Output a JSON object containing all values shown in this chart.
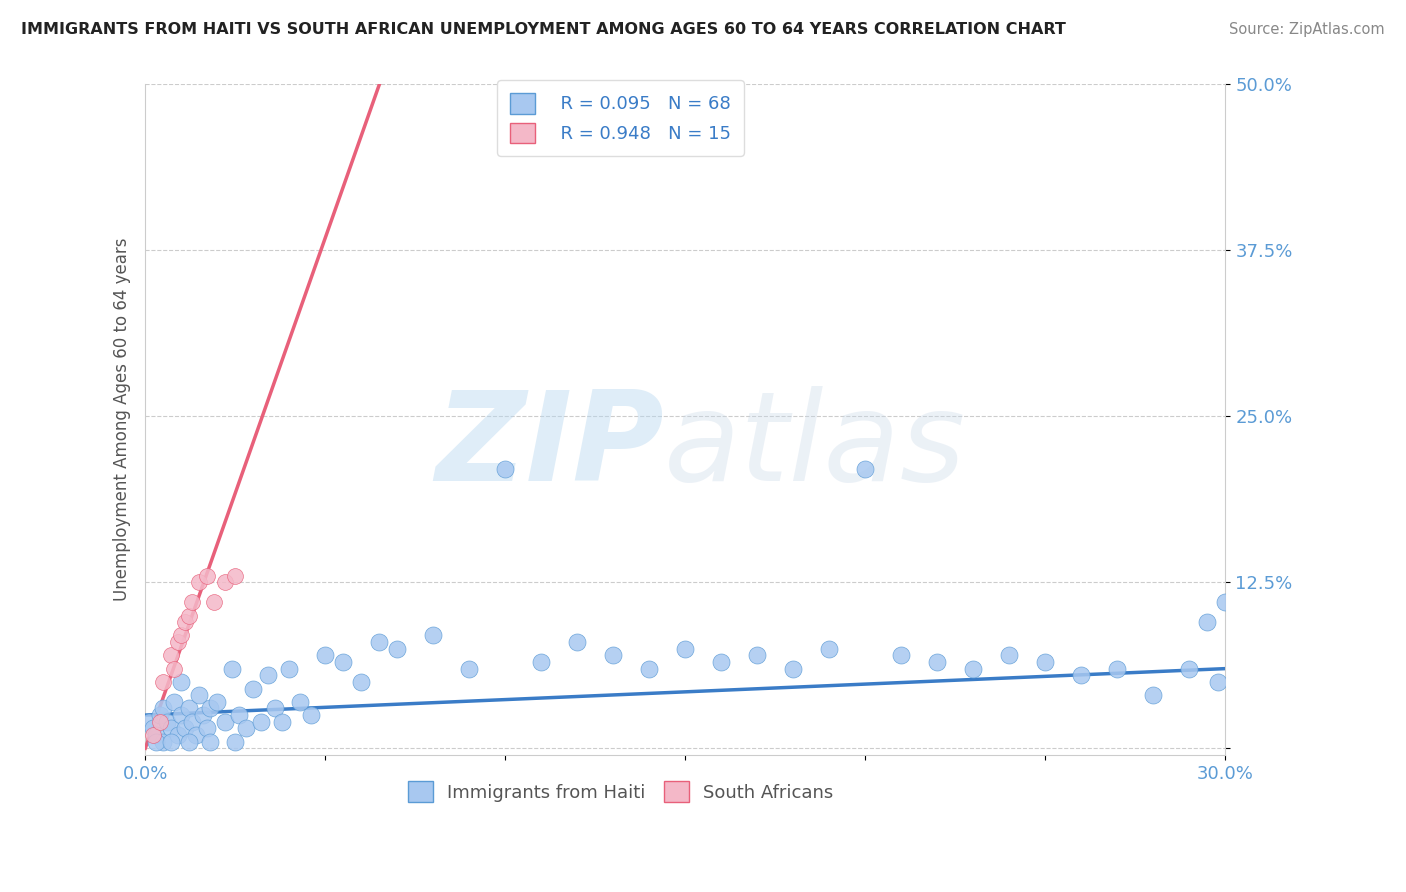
{
  "title": "IMMIGRANTS FROM HAITI VS SOUTH AFRICAN UNEMPLOYMENT AMONG AGES 60 TO 64 YEARS CORRELATION CHART",
  "source": "Source: ZipAtlas.com",
  "ylabel": "Unemployment Among Ages 60 to 64 years",
  "xlim": [
    0.0,
    0.3
  ],
  "ylim": [
    -0.005,
    0.5
  ],
  "yticks": [
    0.0,
    0.125,
    0.25,
    0.375,
    0.5
  ],
  "ytick_labels": [
    "",
    "12.5%",
    "25.0%",
    "37.5%",
    "50.0%"
  ],
  "xticks": [
    0.0,
    0.05,
    0.1,
    0.15,
    0.2,
    0.25,
    0.3
  ],
  "xtick_labels": [
    "0.0%",
    "",
    "",
    "",
    "",
    "",
    "30.0%"
  ],
  "watermark_zip": "ZIP",
  "watermark_atlas": "atlas",
  "legend_R1": "R = 0.095",
  "legend_N1": "N = 68",
  "legend_R2": "R = 0.948",
  "legend_N2": "N = 15",
  "blue_color": "#a8c8f0",
  "blue_edge_color": "#5b9bd5",
  "blue_line_color": "#3a7cc7",
  "pink_color": "#f4b8c8",
  "pink_edge_color": "#e8607a",
  "pink_line_color": "#e8607a",
  "background_color": "#ffffff",
  "grid_color": "#cccccc",
  "blue_scatter_x": [
    0.001,
    0.002,
    0.003,
    0.004,
    0.005,
    0.005,
    0.006,
    0.007,
    0.008,
    0.009,
    0.01,
    0.01,
    0.011,
    0.012,
    0.013,
    0.014,
    0.015,
    0.016,
    0.017,
    0.018,
    0.02,
    0.022,
    0.024,
    0.026,
    0.028,
    0.03,
    0.032,
    0.034,
    0.036,
    0.038,
    0.04,
    0.043,
    0.046,
    0.05,
    0.055,
    0.06,
    0.065,
    0.07,
    0.08,
    0.09,
    0.1,
    0.11,
    0.12,
    0.13,
    0.14,
    0.15,
    0.16,
    0.17,
    0.18,
    0.19,
    0.2,
    0.21,
    0.22,
    0.23,
    0.24,
    0.25,
    0.26,
    0.27,
    0.28,
    0.29,
    0.295,
    0.298,
    0.3,
    0.003,
    0.007,
    0.012,
    0.018,
    0.025
  ],
  "blue_scatter_y": [
    0.02,
    0.015,
    0.01,
    0.025,
    0.03,
    0.005,
    0.02,
    0.015,
    0.035,
    0.01,
    0.025,
    0.05,
    0.015,
    0.03,
    0.02,
    0.01,
    0.04,
    0.025,
    0.015,
    0.03,
    0.035,
    0.02,
    0.06,
    0.025,
    0.015,
    0.045,
    0.02,
    0.055,
    0.03,
    0.02,
    0.06,
    0.035,
    0.025,
    0.07,
    0.065,
    0.05,
    0.08,
    0.075,
    0.085,
    0.06,
    0.21,
    0.065,
    0.08,
    0.07,
    0.06,
    0.075,
    0.065,
    0.07,
    0.06,
    0.075,
    0.21,
    0.07,
    0.065,
    0.06,
    0.07,
    0.065,
    0.055,
    0.06,
    0.04,
    0.06,
    0.095,
    0.05,
    0.11,
    0.005,
    0.005,
    0.005,
    0.005,
    0.005
  ],
  "pink_scatter_x": [
    0.002,
    0.004,
    0.005,
    0.007,
    0.008,
    0.009,
    0.01,
    0.011,
    0.012,
    0.013,
    0.015,
    0.017,
    0.019,
    0.022,
    0.025
  ],
  "pink_scatter_y": [
    0.01,
    0.02,
    0.05,
    0.07,
    0.06,
    0.08,
    0.085,
    0.095,
    0.1,
    0.11,
    0.125,
    0.13,
    0.11,
    0.125,
    0.13
  ],
  "blue_line_x0": 0.0,
  "blue_line_x1": 0.3,
  "blue_line_y0": 0.025,
  "blue_line_y1": 0.06,
  "pink_line_x0": 0.0,
  "pink_line_x1": 0.065,
  "pink_line_y0": 0.0,
  "pink_line_y1": 0.5
}
